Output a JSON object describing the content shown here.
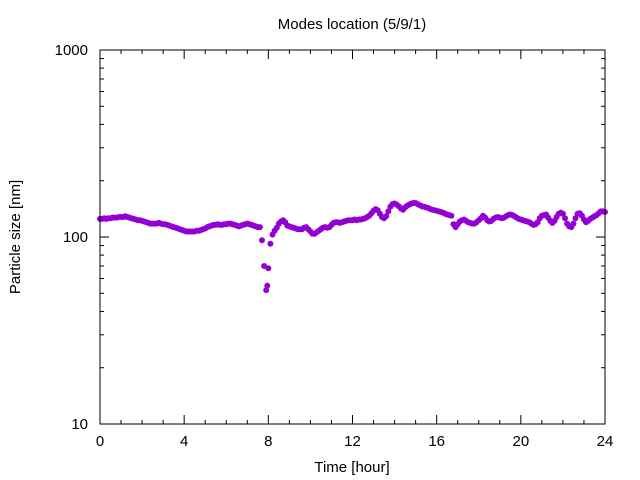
{
  "chart_data": {
    "type": "scatter",
    "title": "Modes location (5/9/1)",
    "xlabel": "Time [hour]",
    "ylabel": "Particle size [nm]",
    "xlim": [
      0,
      24
    ],
    "ylim": [
      10,
      1000
    ],
    "yscale": "log",
    "xticks": [
      0,
      4,
      8,
      12,
      16,
      20,
      24
    ],
    "xtick_labels": [
      "0",
      "4",
      "8",
      "12",
      "16",
      "20",
      "24"
    ],
    "yticks": [
      10,
      100,
      1000
    ],
    "ytick_labels": [
      "10",
      "100",
      "1000"
    ],
    "grid": false,
    "marker_color": "#9400d3",
    "series": [
      {
        "values_note": "",
        "points": [
          [
            0.0,
            125
          ],
          [
            0.1,
            125
          ],
          [
            0.2,
            126
          ],
          [
            0.3,
            125
          ],
          [
            0.4,
            126
          ],
          [
            0.5,
            126
          ],
          [
            0.6,
            127
          ],
          [
            0.7,
            127
          ],
          [
            0.8,
            127
          ],
          [
            0.9,
            128
          ],
          [
            1.0,
            128
          ],
          [
            1.1,
            128
          ],
          [
            1.2,
            129
          ],
          [
            1.3,
            128
          ],
          [
            1.4,
            127
          ],
          [
            1.5,
            126
          ],
          [
            1.6,
            125
          ],
          [
            1.7,
            124
          ],
          [
            1.8,
            123
          ],
          [
            1.9,
            123
          ],
          [
            2.0,
            122
          ],
          [
            2.1,
            121
          ],
          [
            2.2,
            120
          ],
          [
            2.3,
            119
          ],
          [
            2.4,
            118
          ],
          [
            2.5,
            118
          ],
          [
            2.6,
            118
          ],
          [
            2.7,
            118
          ],
          [
            2.8,
            119
          ],
          [
            2.9,
            118
          ],
          [
            3.0,
            117
          ],
          [
            3.1,
            117
          ],
          [
            3.2,
            116
          ],
          [
            3.3,
            115
          ],
          [
            3.4,
            114
          ],
          [
            3.5,
            113
          ],
          [
            3.6,
            112
          ],
          [
            3.7,
            111
          ],
          [
            3.8,
            110
          ],
          [
            3.9,
            109
          ],
          [
            4.0,
            108
          ],
          [
            4.1,
            107
          ],
          [
            4.2,
            107
          ],
          [
            4.3,
            107
          ],
          [
            4.4,
            107
          ],
          [
            4.5,
            107
          ],
          [
            4.6,
            108
          ],
          [
            4.7,
            108
          ],
          [
            4.8,
            109
          ],
          [
            4.9,
            110
          ],
          [
            5.0,
            111
          ],
          [
            5.1,
            113
          ],
          [
            5.2,
            114
          ],
          [
            5.3,
            115
          ],
          [
            5.4,
            116
          ],
          [
            5.5,
            116
          ],
          [
            5.6,
            117
          ],
          [
            5.7,
            116
          ],
          [
            5.8,
            116
          ],
          [
            5.9,
            117
          ],
          [
            6.0,
            117
          ],
          [
            6.1,
            118
          ],
          [
            6.2,
            118
          ],
          [
            6.3,
            117
          ],
          [
            6.4,
            116
          ],
          [
            6.5,
            115
          ],
          [
            6.6,
            114
          ],
          [
            6.7,
            115
          ],
          [
            6.8,
            116
          ],
          [
            6.9,
            117
          ],
          [
            7.0,
            118
          ],
          [
            7.1,
            117
          ],
          [
            7.2,
            116
          ],
          [
            7.3,
            115
          ],
          [
            7.4,
            114
          ],
          [
            7.5,
            113
          ],
          [
            7.6,
            113
          ],
          [
            7.7,
            96
          ],
          [
            7.8,
            70
          ],
          [
            7.9,
            52
          ],
          [
            7.95,
            55
          ],
          [
            8.0,
            68
          ],
          [
            8.1,
            92
          ],
          [
            8.2,
            103
          ],
          [
            8.3,
            108
          ],
          [
            8.4,
            112
          ],
          [
            8.5,
            118
          ],
          [
            8.6,
            121
          ],
          [
            8.7,
            123
          ],
          [
            8.8,
            120
          ],
          [
            8.9,
            115
          ],
          [
            9.0,
            114
          ],
          [
            9.1,
            113
          ],
          [
            9.2,
            112
          ],
          [
            9.3,
            111
          ],
          [
            9.4,
            110
          ],
          [
            9.5,
            110
          ],
          [
            9.6,
            110
          ],
          [
            9.7,
            112
          ],
          [
            9.8,
            113
          ],
          [
            9.9,
            110
          ],
          [
            10.0,
            107
          ],
          [
            10.1,
            104
          ],
          [
            10.2,
            104
          ],
          [
            10.3,
            106
          ],
          [
            10.4,
            108
          ],
          [
            10.5,
            110
          ],
          [
            10.6,
            112
          ],
          [
            10.7,
            113
          ],
          [
            10.8,
            112
          ],
          [
            10.9,
            113
          ],
          [
            11.0,
            116
          ],
          [
            11.1,
            119
          ],
          [
            11.2,
            120
          ],
          [
            11.3,
            120
          ],
          [
            11.4,
            119
          ],
          [
            11.5,
            120
          ],
          [
            11.6,
            121
          ],
          [
            11.7,
            122
          ],
          [
            11.8,
            123
          ],
          [
            11.9,
            123
          ],
          [
            12.0,
            123
          ],
          [
            12.1,
            124
          ],
          [
            12.2,
            123
          ],
          [
            12.3,
            124
          ],
          [
            12.4,
            124
          ],
          [
            12.5,
            125
          ],
          [
            12.6,
            126
          ],
          [
            12.7,
            128
          ],
          [
            12.8,
            130
          ],
          [
            12.9,
            134
          ],
          [
            13.0,
            138
          ],
          [
            13.1,
            141
          ],
          [
            13.2,
            139
          ],
          [
            13.3,
            133
          ],
          [
            13.4,
            128
          ],
          [
            13.5,
            126
          ],
          [
            13.6,
            129
          ],
          [
            13.7,
            137
          ],
          [
            13.8,
            145
          ],
          [
            13.9,
            150
          ],
          [
            14.0,
            151
          ],
          [
            14.1,
            149
          ],
          [
            14.2,
            146
          ],
          [
            14.3,
            142
          ],
          [
            14.4,
            140
          ],
          [
            14.5,
            144
          ],
          [
            14.6,
            147
          ],
          [
            14.7,
            149
          ],
          [
            14.8,
            151
          ],
          [
            14.9,
            152
          ],
          [
            15.0,
            152
          ],
          [
            15.1,
            150
          ],
          [
            15.2,
            148
          ],
          [
            15.3,
            146
          ],
          [
            15.4,
            145
          ],
          [
            15.5,
            144
          ],
          [
            15.6,
            143
          ],
          [
            15.7,
            141
          ],
          [
            15.8,
            140
          ],
          [
            15.9,
            139
          ],
          [
            16.0,
            138
          ],
          [
            16.1,
            137
          ],
          [
            16.2,
            136
          ],
          [
            16.3,
            135
          ],
          [
            16.4,
            133
          ],
          [
            16.5,
            132
          ],
          [
            16.6,
            131
          ],
          [
            16.7,
            130
          ],
          [
            16.8,
            117
          ],
          [
            16.9,
            113
          ],
          [
            17.0,
            117
          ],
          [
            17.1,
            121
          ],
          [
            17.2,
            123
          ],
          [
            17.3,
            124
          ],
          [
            17.4,
            122
          ],
          [
            17.5,
            120
          ],
          [
            17.6,
            119
          ],
          [
            17.7,
            118
          ],
          [
            17.8,
            118
          ],
          [
            17.9,
            120
          ],
          [
            18.0,
            123
          ],
          [
            18.1,
            126
          ],
          [
            18.2,
            130
          ],
          [
            18.3,
            127
          ],
          [
            18.4,
            123
          ],
          [
            18.5,
            121
          ],
          [
            18.6,
            122
          ],
          [
            18.7,
            125
          ],
          [
            18.8,
            127
          ],
          [
            18.9,
            128
          ],
          [
            19.0,
            127
          ],
          [
            19.1,
            126
          ],
          [
            19.2,
            127
          ],
          [
            19.3,
            129
          ],
          [
            19.4,
            131
          ],
          [
            19.5,
            132
          ],
          [
            19.6,
            131
          ],
          [
            19.7,
            129
          ],
          [
            19.8,
            127
          ],
          [
            19.9,
            125
          ],
          [
            20.0,
            124
          ],
          [
            20.1,
            123
          ],
          [
            20.2,
            122
          ],
          [
            20.3,
            121
          ],
          [
            20.4,
            120
          ],
          [
            20.5,
            118
          ],
          [
            20.6,
            116
          ],
          [
            20.7,
            117
          ],
          [
            20.8,
            120
          ],
          [
            20.9,
            126
          ],
          [
            21.0,
            130
          ],
          [
            21.1,
            131
          ],
          [
            21.2,
            132
          ],
          [
            21.3,
            127
          ],
          [
            21.4,
            122
          ],
          [
            21.5,
            119
          ],
          [
            21.6,
            122
          ],
          [
            21.7,
            128
          ],
          [
            21.8,
            133
          ],
          [
            21.9,
            135
          ],
          [
            22.0,
            133
          ],
          [
            22.1,
            126
          ],
          [
            22.2,
            118
          ],
          [
            22.3,
            114
          ],
          [
            22.4,
            113
          ],
          [
            22.5,
            118
          ],
          [
            22.6,
            126
          ],
          [
            22.7,
            133
          ],
          [
            22.8,
            134
          ],
          [
            22.9,
            130
          ],
          [
            23.0,
            124
          ],
          [
            23.1,
            120
          ],
          [
            23.2,
            122
          ],
          [
            23.3,
            125
          ],
          [
            23.4,
            127
          ],
          [
            23.5,
            129
          ],
          [
            23.6,
            131
          ],
          [
            23.7,
            134
          ],
          [
            23.8,
            137
          ],
          [
            23.9,
            137
          ],
          [
            24.0,
            136
          ]
        ]
      }
    ]
  }
}
